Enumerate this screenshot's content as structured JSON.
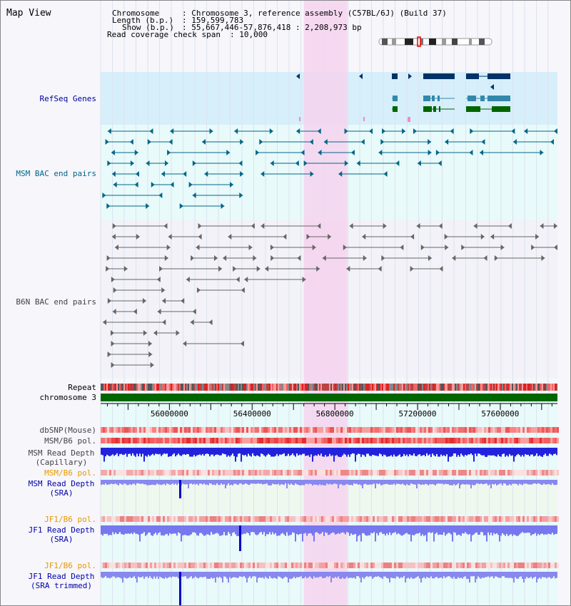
{
  "page": {
    "title": "Map View"
  },
  "info": {
    "chromosome_label": "Chromosome",
    "chromosome_value": ": Chromosome 3, reference assembly (C57BL/6J) (Build 37)",
    "length_label": "Length (b.p.)",
    "length_value": ": 159,599,783",
    "show_label": "Show (b.p.)",
    "show_value": ": 55,667,446-57,876,418 : 2,208,973 bp",
    "coverage_label": "Read coverage check span",
    "coverage_value": ": 10,000"
  },
  "tracks": {
    "refseq": "RefSeq Genes",
    "msm_bac": "MSM BAC end pairs",
    "b6n_bac": "B6N BAC end pairs",
    "repeat": "Repeat",
    "chromosome": "chromosome 3",
    "dbsnp": "dbSNP(Mouse)",
    "msm_b6_pol_1": "MSM/B6 pol.",
    "msm_read_depth_cap_1": "MSM Read Depth",
    "msm_read_depth_cap_2": "(Capillary)",
    "msm_b6_pol_2": "MSM/B6 pol.",
    "msm_read_depth_sra_1": "MSM Read Depth",
    "msm_read_depth_sra_2": "(SRA)",
    "jf1_b6_pol_1": "JF1/B6 pol.",
    "jf1_read_depth_sra_1": "JF1 Read Depth",
    "jf1_read_depth_sra_2": "(SRA)",
    "jf1_b6_pol_2": "JF1/B6 pol.",
    "jf1_read_depth_trim_1": "JF1 Read Depth",
    "jf1_read_depth_trim_2": "(SRA trimmed)"
  },
  "axis": {
    "ticks": [
      "56000000",
      "56400000",
      "56800000",
      "57200000",
      "57600000"
    ],
    "tick_values": [
      56000000,
      56400000,
      56800000,
      57200000,
      57600000
    ],
    "start": 55667446,
    "end": 57876418
  },
  "highlight": {
    "start": 56650000,
    "end": 56860000
  },
  "colors": {
    "highlight": "#f6d4ee",
    "refseq_bg": "#d6effa",
    "bac_bg": "#e8fafa",
    "refseq_label": "#000099",
    "msm_label": "#006688",
    "b6n_label": "#444444",
    "orange_label": "#e69900",
    "blue_label": "#0000aa",
    "refseq_dark": "#003366",
    "refseq_teal": "#3388aa",
    "refseq_green": "#006600",
    "msm_feature": "#006688",
    "b6n_feature": "#666666",
    "chromosome_bar": "#006600",
    "depth_blue": "#2222dd",
    "depth_light": "#7777ee"
  }
}
